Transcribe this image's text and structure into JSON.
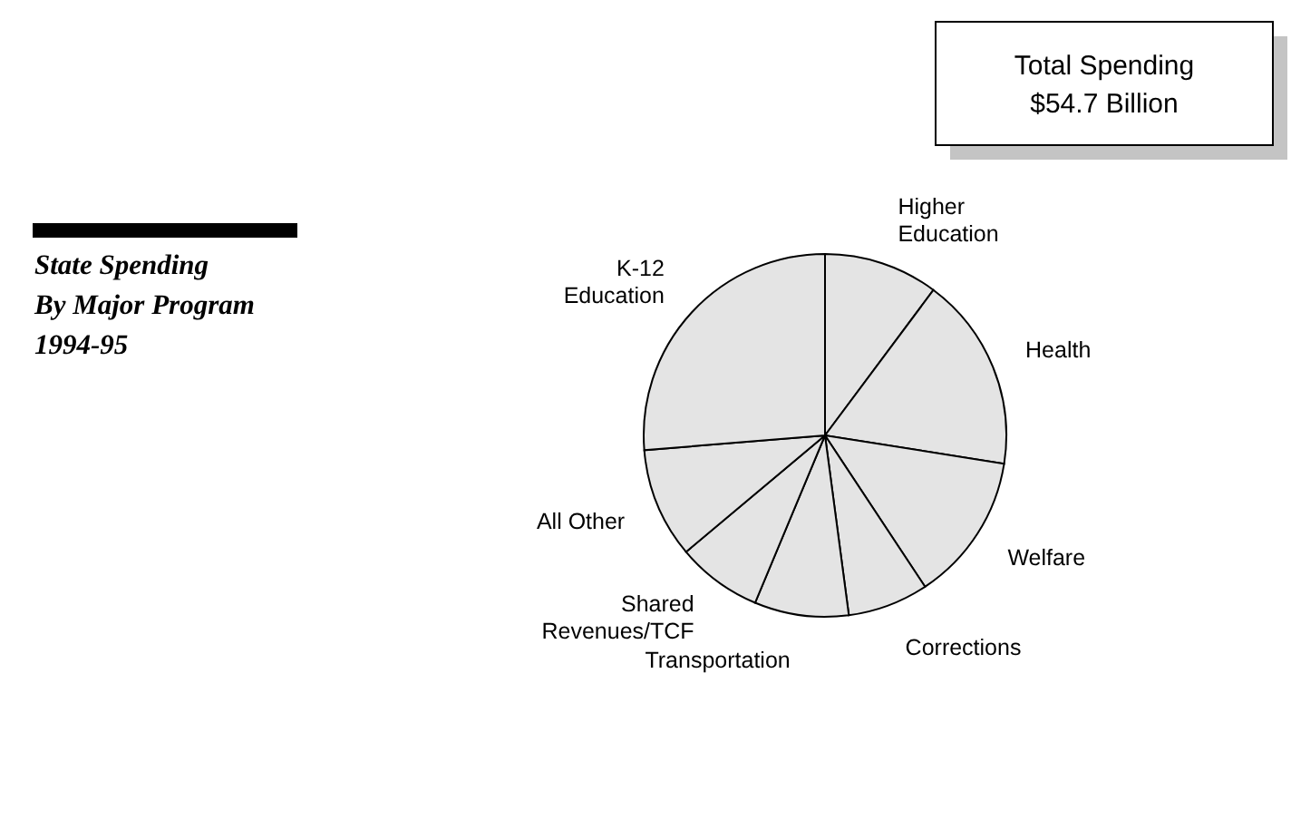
{
  "chart_data": {
    "type": "pie",
    "title": "State Spending By Major Program 1994-95",
    "categories": [
      "Higher Education",
      "Health",
      "Welfare",
      "Corrections",
      "Transportation",
      "Shared Revenues/TCF",
      "All Other",
      "K-12 Education"
    ],
    "values": [
      10.2,
      17.3,
      13.2,
      7.2,
      8.4,
      7.6,
      9.8,
      26.3
    ],
    "colors": [
      "#e4e4e4",
      "#e4e4e4",
      "#e4e4e4",
      "#e4e4e4",
      "#e4e4e4",
      "#e4e4e4",
      "#e4e4e4",
      "#e4e4e4"
    ],
    "annotations": [
      "Total Spending $54.7 Billion"
    ]
  }
}
